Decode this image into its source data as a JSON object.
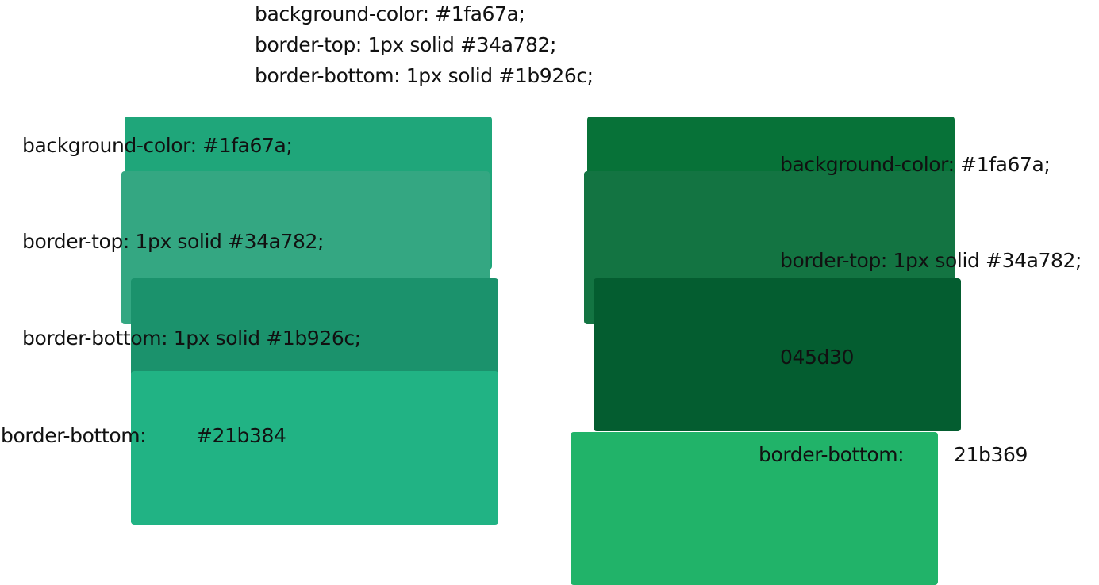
{
  "header": {
    "lines": [
      "background-color: #1fa67a;",
      "border-top: 1px solid #34a782;",
      "border-bottom: 1px solid #1b926c;"
    ]
  },
  "left_stack": {
    "swatches": [
      {
        "color": "#1fa67a"
      },
      {
        "color": "#34a782"
      },
      {
        "color": "#1b926c"
      },
      {
        "color": "#21b384"
      }
    ],
    "labels": {
      "bg": "background-color: #1fa67a;",
      "top": "border-top: 1px solid #34a782;",
      "bottom": "border-bottom: 1px solid #1b926c;",
      "extra_prop": "border-bottom:",
      "extra_value": "#21b384"
    }
  },
  "right_stack": {
    "swatches": [
      {
        "color": "#077238"
      },
      {
        "color": "#137442"
      },
      {
        "color": "#045d30"
      },
      {
        "color": "#21b369"
      }
    ],
    "labels": {
      "bg": "background-color: #1fa67a;",
      "top": "border-top: 1px solid #34a782;",
      "mid": "045d30",
      "extra_prop": "border-bottom:",
      "extra_value": "21b369"
    }
  }
}
